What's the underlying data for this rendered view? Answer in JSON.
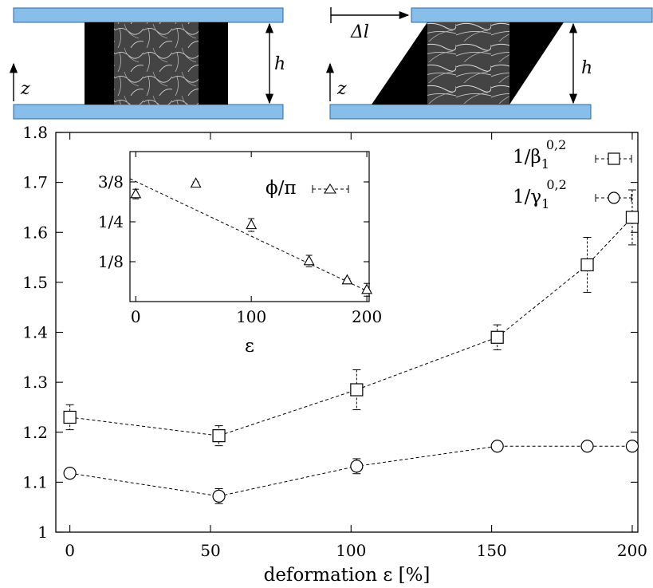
{
  "colors": {
    "plate": "#87bfea",
    "plate_border": "#2d6aa0",
    "sample_dark": "#000000",
    "sample_gel": "#444444",
    "fiber": "#cfcfcf"
  },
  "sketch": {
    "left": {
      "height_label": "h",
      "axis_label": "z"
    },
    "right": {
      "height_label": "h",
      "axis_label": "z",
      "shift_label": "Δl"
    }
  },
  "chart_data": [
    {
      "type": "line",
      "xlabel": "deformation ε [%]",
      "ylabel": "",
      "xlim": [
        -5,
        202
      ],
      "ylim": [
        1.0,
        1.8
      ],
      "xticks": [
        0,
        50,
        100,
        150,
        200
      ],
      "yticks": [
        1,
        1.1,
        1.2,
        1.3,
        1.4,
        1.5,
        1.6,
        1.7,
        1.8
      ],
      "ytick_labels": [
        "1",
        "1.1",
        "1.2",
        "1.3",
        "1.4",
        "1.5",
        "1.6",
        "1.7",
        "1.8"
      ],
      "grid": false,
      "legend_position": "top-right",
      "series": [
        {
          "name": "1/β₁",
          "name_base": "1/β",
          "name_sub": "1",
          "name_sup": "0,2",
          "marker": "square",
          "x": [
            0,
            53,
            102,
            152,
            184,
            200
          ],
          "y": [
            1.23,
            1.193,
            1.285,
            1.39,
            1.535,
            1.63
          ],
          "err": [
            0.025,
            0.02,
            0.04,
            0.025,
            0.055,
            0.055
          ]
        },
        {
          "name": "1/γ₁",
          "name_base": "1/γ",
          "name_sub": "1",
          "name_sup": "0,2",
          "marker": "circle",
          "x": [
            0,
            53,
            102,
            152,
            184,
            200
          ],
          "y": [
            1.118,
            1.072,
            1.132,
            1.172,
            1.172,
            1.172
          ],
          "err": [
            0.008,
            0.015,
            0.015,
            0.006,
            0.006,
            0.006
          ]
        }
      ]
    },
    {
      "type": "line",
      "inset": true,
      "xlabel": "ε",
      "ylabel": "",
      "xlim": [
        -5,
        202
      ],
      "ylim": [
        0,
        0.47
      ],
      "xticks": [
        0,
        100,
        200
      ],
      "yticks": [
        0.125,
        0.25,
        0.375
      ],
      "ytick_labels": [
        "1/8",
        "1/4",
        "3/8"
      ],
      "legend_position": "top-right",
      "series": [
        {
          "name": "ϕ/π",
          "marker": "triangle",
          "x": [
            0,
            52,
            100,
            150,
            183,
            200
          ],
          "y": [
            0.337,
            0.37,
            0.24,
            0.127,
            0.067,
            0.037
          ],
          "err": [
            0.015,
            0.005,
            0.02,
            0.018,
            0.005,
            0.02
          ],
          "fit": {
            "x": [
              -5,
              202
            ],
            "y": [
              0.385,
              0.03
            ]
          }
        }
      ]
    }
  ]
}
